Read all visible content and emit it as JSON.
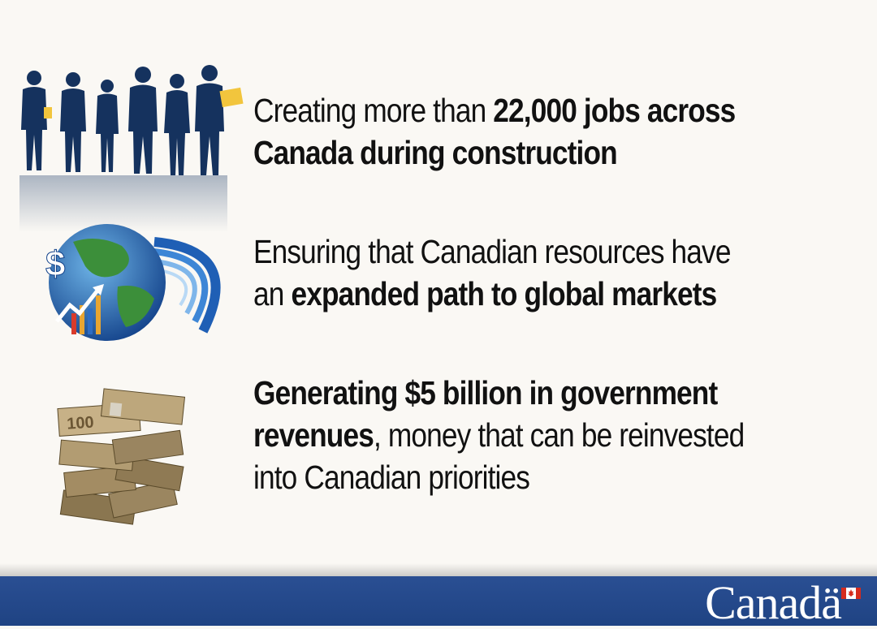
{
  "blocks": [
    {
      "icon": "business-people-silhouettes-icon",
      "segments": [
        {
          "line": 0,
          "parts": [
            {
              "t": "Creating more than ",
              "b": false
            },
            {
              "t": "22,000 jobs across",
              "b": true
            }
          ]
        },
        {
          "line": 1,
          "parts": [
            {
              "t": "Canada during construction",
              "b": true
            }
          ]
        }
      ]
    },
    {
      "icon": "globe-growth-chart-icon",
      "segments": [
        {
          "line": 0,
          "parts": [
            {
              "t": "Ensuring that Canadian resources have",
              "b": false
            }
          ]
        },
        {
          "line": 1,
          "parts": [
            {
              "t": "an ",
              "b": false
            },
            {
              "t": "expanded path to global markets",
              "b": true
            }
          ]
        }
      ]
    },
    {
      "icon": "canadian-money-stack-icon",
      "segments": [
        {
          "line": 0,
          "parts": [
            {
              "t": "Generating $5 billion in government",
              "b": true
            }
          ]
        },
        {
          "line": 1,
          "parts": [
            {
              "t": "revenues",
              "b": true
            },
            {
              "t": ", money that can be reinvested",
              "b": false
            }
          ]
        },
        {
          "line": 2,
          "parts": [
            {
              "t": "into Canadian priorities",
              "b": false
            }
          ]
        }
      ]
    }
  ],
  "footer": {
    "wordmark": "Canadä",
    "icon": "canada-flag-icon",
    "bar_color": "#1f4383"
  }
}
